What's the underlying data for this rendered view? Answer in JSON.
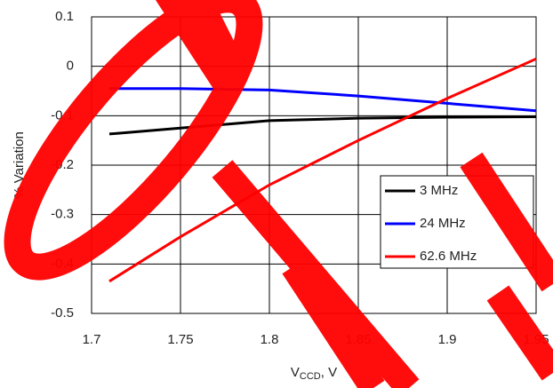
{
  "chart_data": {
    "type": "line",
    "x_label": {
      "main": "V",
      "sub": "CCD",
      "suffix": ", V"
    },
    "y_label": "% Variation",
    "x": [
      1.71,
      1.75,
      1.8,
      1.85,
      1.9,
      1.95
    ],
    "series": [
      {
        "name": "3 MHz",
        "color": "#000000",
        "values": [
          -0.137,
          -0.125,
          -0.11,
          -0.105,
          -0.103,
          -0.102
        ]
      },
      {
        "name": "24 MHz",
        "color": "#0000ff",
        "values": [
          -0.045,
          -0.045,
          -0.048,
          -0.06,
          -0.075,
          -0.09
        ]
      },
      {
        "name": "62.6 MHz",
        "color": "#ff0000",
        "values": [
          -0.435,
          -0.345,
          -0.24,
          -0.15,
          -0.065,
          0.015
        ]
      }
    ],
    "xlim": [
      1.7,
      1.95
    ],
    "xticks": [
      1.7,
      1.75,
      1.8,
      1.85,
      1.9,
      1.95
    ],
    "ylim": [
      -0.5,
      0.1
    ],
    "yticks": [
      0.1,
      0,
      -0.1,
      -0.2,
      -0.3,
      -0.4,
      -0.5
    ],
    "grid": true
  }
}
